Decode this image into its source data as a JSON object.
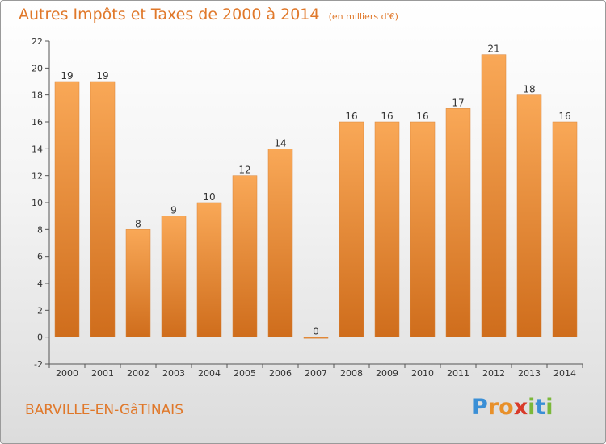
{
  "chart_data": {
    "type": "bar",
    "title": "Autres Impôts et Taxes de 2000 à 2014",
    "subtitle": "(en milliers d'€)",
    "categories": [
      "2000",
      "2001",
      "2002",
      "2003",
      "2004",
      "2005",
      "2006",
      "2007",
      "2008",
      "2009",
      "2010",
      "2011",
      "2012",
      "2013",
      "2014"
    ],
    "values": [
      19,
      19,
      8,
      9,
      10,
      12,
      14,
      0,
      16,
      16,
      16,
      17,
      21,
      18,
      16
    ],
    "ylim": [
      -2,
      22
    ],
    "yticks": [
      -2,
      0,
      2,
      4,
      6,
      8,
      10,
      12,
      14,
      16,
      18,
      20,
      22
    ],
    "grid": false,
    "bar_color": "#f0923a",
    "legend": "none"
  },
  "place_name": "BARVILLE-EN-GâTINAIS",
  "brand": {
    "letters": [
      "P",
      "r",
      "o",
      "x",
      "i",
      "t",
      "i"
    ],
    "colors": [
      "#3a8fd6",
      "#e8902a",
      "#e8902a",
      "#d83a2a",
      "#7bb83a",
      "#3a8fd6",
      "#7bb83a"
    ]
  },
  "colors": {
    "accent": "#e0782a",
    "axis": "#555555"
  }
}
